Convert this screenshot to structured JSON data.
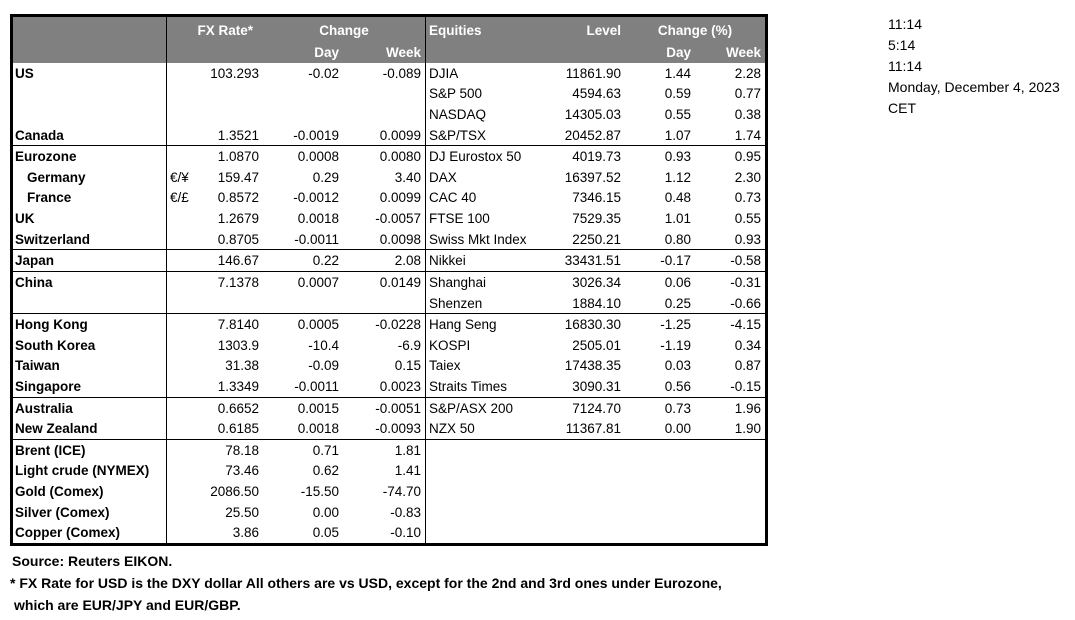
{
  "header": {
    "fx_rate": "FX Rate*",
    "change": "Change",
    "day": "Day",
    "week": "Week",
    "equities": "Equities",
    "level": "Level",
    "change_pct": "Change (%)"
  },
  "info_panel": {
    "lines": [
      "11:14",
      "5:14",
      "11:14",
      "Monday, December 4, 2023",
      "CET"
    ]
  },
  "rows": [
    {
      "country": "US",
      "pair": "",
      "fx_rate": "103.293",
      "fx_day": "-0.02",
      "fx_week": "-0.089",
      "equity": "DJIA",
      "level": "11861.90",
      "eq_day": "1.44",
      "eq_week": "2.28",
      "sep": false,
      "indent": false
    },
    {
      "country": "",
      "pair": "",
      "fx_rate": "",
      "fx_day": "",
      "fx_week": "",
      "equity": "S&P 500",
      "level": "4594.63",
      "eq_day": "0.59",
      "eq_week": "0.77",
      "sep": false,
      "indent": false
    },
    {
      "country": "",
      "pair": "",
      "fx_rate": "",
      "fx_day": "",
      "fx_week": "",
      "equity": "NASDAQ",
      "level": "14305.03",
      "eq_day": "0.55",
      "eq_week": "0.38",
      "sep": false,
      "indent": false
    },
    {
      "country": "Canada",
      "pair": "",
      "fx_rate": "1.3521",
      "fx_day": "-0.0019",
      "fx_week": "0.0099",
      "equity": "S&P/TSX",
      "level": "20452.87",
      "eq_day": "1.07",
      "eq_week": "1.74",
      "sep": false,
      "indent": false
    },
    {
      "country": "Eurozone",
      "pair": "",
      "fx_rate": "1.0870",
      "fx_day": "0.0008",
      "fx_week": "0.0080",
      "equity": "DJ Eurostox 50",
      "level": "4019.73",
      "eq_day": "0.93",
      "eq_week": "0.95",
      "sep": true,
      "indent": false
    },
    {
      "country": "Germany",
      "pair": "€/¥",
      "fx_rate": "159.47",
      "fx_day": "0.29",
      "fx_week": "3.40",
      "equity": "DAX",
      "level": "16397.52",
      "eq_day": "1.12",
      "eq_week": "2.30",
      "sep": false,
      "indent": true
    },
    {
      "country": "France",
      "pair": "€/£",
      "fx_rate": "0.8572",
      "fx_day": "-0.0012",
      "fx_week": "0.0099",
      "equity": "CAC 40",
      "level": "7346.15",
      "eq_day": "0.48",
      "eq_week": "0.73",
      "sep": false,
      "indent": true
    },
    {
      "country": "UK",
      "pair": "",
      "fx_rate": "1.2679",
      "fx_day": "0.0018",
      "fx_week": "-0.0057",
      "equity": "FTSE 100",
      "level": "7529.35",
      "eq_day": "1.01",
      "eq_week": "0.55",
      "sep": false,
      "indent": false
    },
    {
      "country": "Switzerland",
      "pair": "",
      "fx_rate": "0.8705",
      "fx_day": "-0.0011",
      "fx_week": "0.0098",
      "equity": "Swiss Mkt Index",
      "level": "2250.21",
      "eq_day": "0.80",
      "eq_week": "0.93",
      "sep": false,
      "indent": false
    },
    {
      "country": "Japan",
      "pair": "",
      "fx_rate": "146.67",
      "fx_day": "0.22",
      "fx_week": "2.08",
      "equity": "Nikkei",
      "level": "33431.51",
      "eq_day": "-0.17",
      "eq_week": "-0.58",
      "sep": true,
      "indent": false
    },
    {
      "country": "China",
      "pair": "",
      "fx_rate": "7.1378",
      "fx_day": "0.0007",
      "fx_week": "0.0149",
      "equity": "Shanghai",
      "level": "3026.34",
      "eq_day": "0.06",
      "eq_week": "-0.31",
      "sep": true,
      "indent": false
    },
    {
      "country": "",
      "pair": "",
      "fx_rate": "",
      "fx_day": "",
      "fx_week": "",
      "equity": "Shenzen",
      "level": "1884.10",
      "eq_day": "0.25",
      "eq_week": "-0.66",
      "sep": false,
      "indent": false
    },
    {
      "country": "Hong Kong",
      "pair": "",
      "fx_rate": "7.8140",
      "fx_day": "0.0005",
      "fx_week": "-0.0228",
      "equity": "Hang Seng",
      "level": "16830.30",
      "eq_day": "-1.25",
      "eq_week": "-4.15",
      "sep": true,
      "indent": false
    },
    {
      "country": "South Korea",
      "pair": "",
      "fx_rate": "1303.9",
      "fx_day": "-10.4",
      "fx_week": "-6.9",
      "equity": "KOSPI",
      "level": "2505.01",
      "eq_day": "-1.19",
      "eq_week": "0.34",
      "sep": false,
      "indent": false
    },
    {
      "country": "Taiwan",
      "pair": "",
      "fx_rate": "31.38",
      "fx_day": "-0.09",
      "fx_week": "0.15",
      "equity": "Taiex",
      "level": "17438.35",
      "eq_day": "0.03",
      "eq_week": "0.87",
      "sep": false,
      "indent": false
    },
    {
      "country": "Singapore",
      "pair": "",
      "fx_rate": "1.3349",
      "fx_day": "-0.0011",
      "fx_week": "0.0023",
      "equity": "Straits Times",
      "level": "3090.31",
      "eq_day": "0.56",
      "eq_week": "-0.15",
      "sep": false,
      "indent": false
    },
    {
      "country": "Australia",
      "pair": "",
      "fx_rate": "0.6652",
      "fx_day": "0.0015",
      "fx_week": "-0.0051",
      "equity": "S&P/ASX  200",
      "level": "7124.70",
      "eq_day": "0.73",
      "eq_week": "1.96",
      "sep": true,
      "indent": false
    },
    {
      "country": "New Zealand",
      "pair": "",
      "fx_rate": "0.6185",
      "fx_day": "0.0018",
      "fx_week": "-0.0093",
      "equity": "NZX 50",
      "level": "11367.81",
      "eq_day": "0.00",
      "eq_week": "1.90",
      "sep": false,
      "indent": false
    },
    {
      "country": "Brent (ICE)",
      "pair": "",
      "fx_rate": "78.18",
      "fx_day": "0.71",
      "fx_week": "1.81",
      "equity": "",
      "level": "",
      "eq_day": "",
      "eq_week": "",
      "sep": true,
      "indent": false
    },
    {
      "country": "Light crude (NYMEX)",
      "pair": "",
      "fx_rate": "73.46",
      "fx_day": "0.62",
      "fx_week": "1.41",
      "equity": "",
      "level": "",
      "eq_day": "",
      "eq_week": "",
      "sep": false,
      "indent": false
    },
    {
      "country": "Gold (Comex)",
      "pair": "",
      "fx_rate": "2086.50",
      "fx_day": "-15.50",
      "fx_week": "-74.70",
      "equity": "",
      "level": "",
      "eq_day": "",
      "eq_week": "",
      "sep": false,
      "indent": false
    },
    {
      "country": "Silver (Comex)",
      "pair": "",
      "fx_rate": "25.50",
      "fx_day": "0.00",
      "fx_week": "-0.83",
      "equity": "",
      "level": "",
      "eq_day": "",
      "eq_week": "",
      "sep": false,
      "indent": false
    },
    {
      "country": "Copper (Comex)",
      "pair": "",
      "fx_rate": "3.86",
      "fx_day": "0.05",
      "fx_week": "-0.10",
      "equity": "",
      "level": "",
      "eq_day": "",
      "eq_week": "",
      "sep": false,
      "indent": false
    }
  ],
  "footer": {
    "source": "Source:  Reuters EIKON.",
    "note_line1": "* FX Rate for USD is the DXY dollar  All others are vs USD, except for the 2nd and 3rd ones under Eurozone,",
    "note_line2": "which are EUR/JPY and EUR/GBP."
  },
  "colors": {
    "header_bg": "#808080",
    "header_text": "#ffffff",
    "border": "#000000",
    "text": "#000000"
  }
}
